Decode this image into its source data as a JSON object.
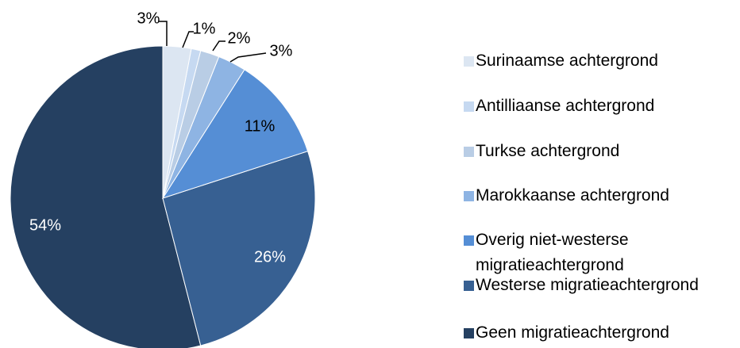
{
  "chart_data": {
    "type": "pie",
    "categories": [
      "Surinaamse achtergrond",
      "Antilliaanse achtergrond",
      "Turkse achtergrond",
      "Marokkaanse achtergrond",
      "Overig niet-westerse migratieachtergrond",
      "Westerse migratieachtergrond",
      "Geen migratieachtergrond"
    ],
    "values": [
      3,
      1,
      2,
      3,
      11,
      26,
      54
    ],
    "value_labels": [
      "3%",
      "1%",
      "2%",
      "3%",
      "11%",
      "26%",
      "54%"
    ],
    "colors": [
      "#dce6f2",
      "#c6d9f1",
      "#b9cde5",
      "#8eb4e3",
      "#558ed5",
      "#376092",
      "#254061"
    ],
    "legend": "right"
  }
}
